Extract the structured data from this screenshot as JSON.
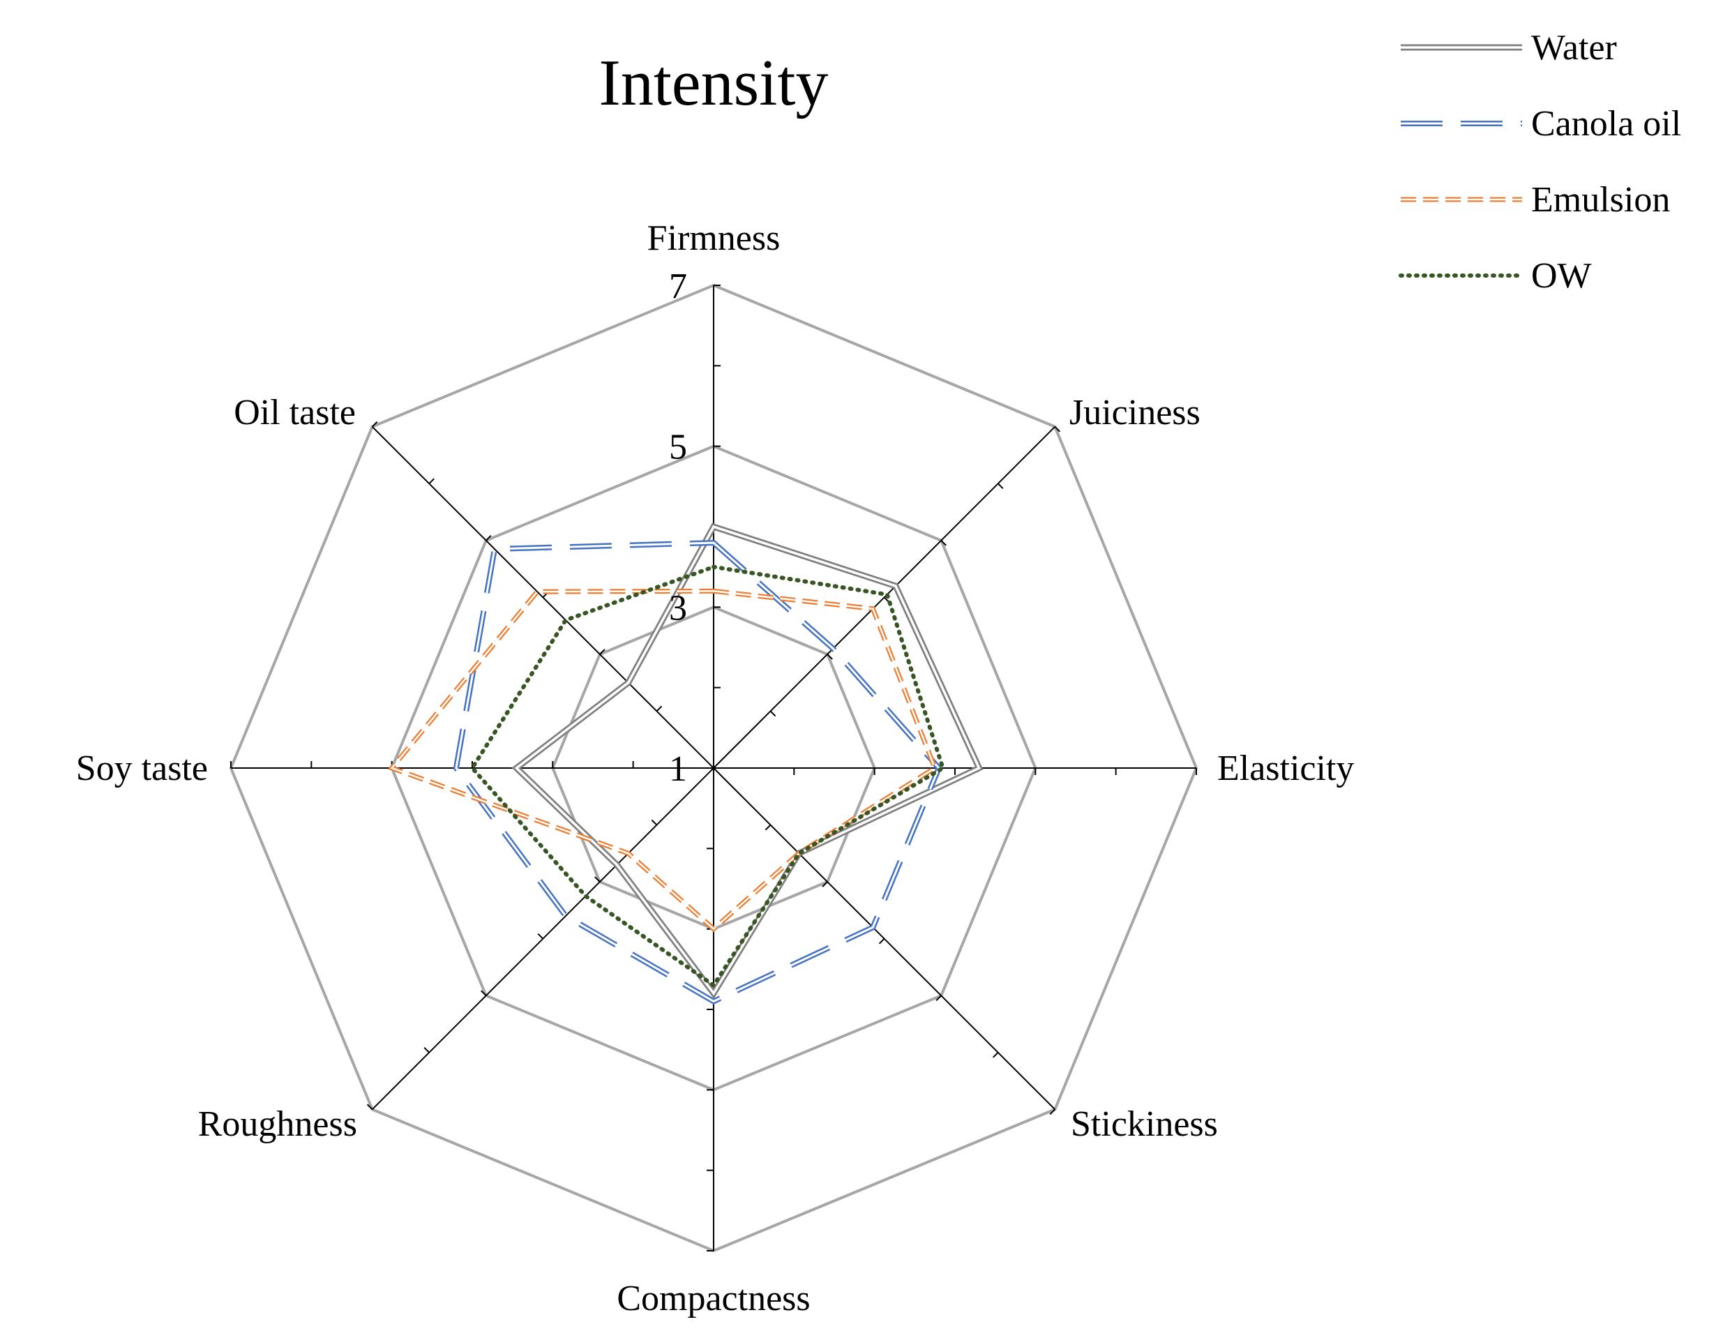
{
  "chart_data": {
    "type": "radar",
    "title": "Intensity",
    "axes": [
      "Firmness",
      "Juiciness",
      "Elasticity",
      "Stickiness",
      "Compactness",
      "Roughness",
      "Soy taste",
      "Oil taste"
    ],
    "range": [
      1,
      7
    ],
    "tick_labels": [
      "1",
      "3",
      "5",
      "7"
    ],
    "series": [
      {
        "name": "Water",
        "style": "double-line",
        "color": "#808080",
        "values": [
          4.0,
          4.2,
          4.3,
          2.5,
          3.8,
          2.7,
          3.45,
          2.5
        ]
      },
      {
        "name": "Canola oil",
        "style": "long-dash",
        "color": "#4472c4",
        "values": [
          3.8,
          3.1,
          3.8,
          3.8,
          3.9,
          3.6,
          4.2,
          4.85
        ]
      },
      {
        "name": "Emulsion",
        "style": "short-dash",
        "color": "#ed7d31",
        "values": [
          3.2,
          3.8,
          3.75,
          2.5,
          3.0,
          2.5,
          5.0,
          4.1
        ]
      },
      {
        "name": "OW",
        "style": "dotted",
        "color": "#375623",
        "values": [
          3.5,
          4.05,
          3.85,
          2.5,
          3.7,
          3.25,
          4.0,
          3.6
        ]
      }
    ],
    "legend_position": "top-right"
  }
}
